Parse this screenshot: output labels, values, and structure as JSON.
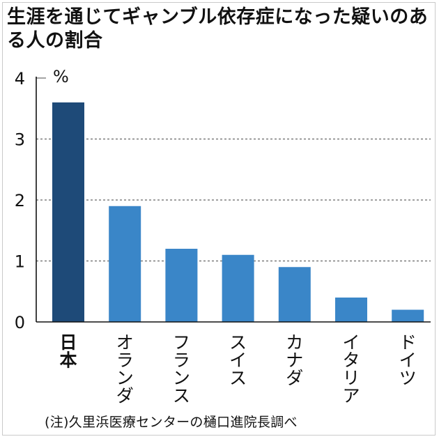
{
  "title": "生涯を通じてギャンブル依存症になった疑いのある人の割合",
  "unit": "%",
  "note": "(注)久里浜医療センターの樋口進院長調べ",
  "colors": {
    "highlight": "#1e4a78",
    "bar": "#3a86c8",
    "grid": "#666666",
    "axis": "#111111"
  },
  "chart_data": {
    "type": "bar",
    "title": "生涯を通じてギャンブル依存症になった疑いのある人の割合",
    "ylabel": "%",
    "xlabel": "",
    "categories": [
      "日本",
      "オランダ",
      "フランス",
      "スイス",
      "カナダ",
      "イタリア",
      "ドイツ"
    ],
    "values": [
      3.6,
      1.9,
      1.2,
      1.1,
      0.9,
      0.4,
      0.2
    ],
    "highlight_index": 0,
    "ylim": [
      0,
      4
    ],
    "yticks": [
      "0",
      "1",
      "2",
      "3",
      "4"
    ],
    "grid": "dashed horizontal"
  }
}
